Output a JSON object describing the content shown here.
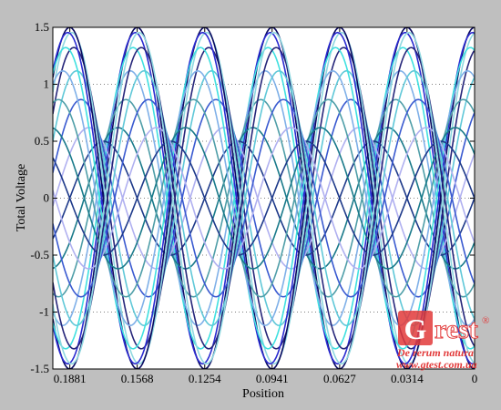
{
  "chart_data": {
    "type": "line",
    "title": "",
    "xlabel": "Position",
    "ylabel": "Total Voltage",
    "x_reversed": true,
    "xlim": [
      0,
      0.196
    ],
    "ylim": [
      -1.5,
      1.5
    ],
    "xticks": [
      {
        "value": 0.1881,
        "label": "0.1881"
      },
      {
        "value": 0.1568,
        "label": "0.1568"
      },
      {
        "value": 0.1254,
        "label": "0.1254"
      },
      {
        "value": 0.0941,
        "label": "0.0941"
      },
      {
        "value": 0.0627,
        "label": "0.0627"
      },
      {
        "value": 0.0314,
        "label": "0.0314"
      },
      {
        "value": 0,
        "label": "0"
      }
    ],
    "yticks": [
      {
        "value": 1.5,
        "label": "1.5"
      },
      {
        "value": 1,
        "label": "1"
      },
      {
        "value": 0.5,
        "label": "0.5"
      },
      {
        "value": 0,
        "label": "0"
      },
      {
        "value": -0.5,
        "label": "-0.5"
      },
      {
        "value": -1,
        "label": "-1"
      },
      {
        "value": -1.5,
        "label": "-1.5"
      }
    ],
    "grid": "y-dotted",
    "wavelength": 0.0627,
    "node_positions": [
      0.1568,
      0.0941,
      0.0314
    ],
    "node_amplitude": 0.5,
    "standing_wave_amplitude": 1.0,
    "series_count": 24,
    "colors": [
      "#0a0a60",
      "#2a2ad0",
      "#40e0e0",
      "#7fb0e8",
      "#4f9ea8",
      "#1a7a8a",
      "#1e3a8a",
      "#b0b0f0",
      "#3a5ad0",
      "#60c8d8",
      "#26267a",
      "#8fd8e0"
    ]
  },
  "watermark": {
    "logo_g": "G",
    "logo_rest": "rest",
    "registered": "®",
    "tagline": "De rerum natura",
    "url": "www.gtest.com.ua"
  }
}
